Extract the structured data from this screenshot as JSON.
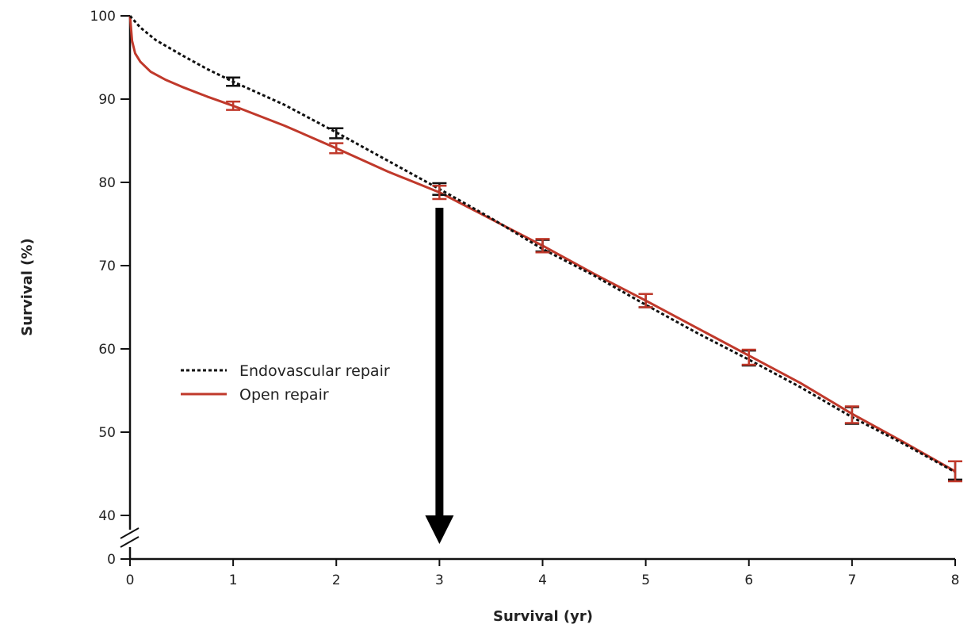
{
  "chart_data": {
    "type": "line",
    "xlabel": "Survival (yr)",
    "ylabel": "Survival (%)",
    "xlim": [
      0,
      8
    ],
    "ylim": [
      40,
      100
    ],
    "axis_break": true,
    "x_ticks": [
      "0",
      "1",
      "2",
      "3",
      "4",
      "5",
      "6",
      "7",
      "8"
    ],
    "y_ticks": [
      "0",
      "40",
      "50",
      "60",
      "70",
      "80",
      "90",
      "100"
    ],
    "grid": false,
    "legend_position": "center-left",
    "annotation": "downward arrow at x = 3",
    "series": [
      {
        "name": "Endovascular repair",
        "style": "dotted",
        "color": "#111111",
        "x": [
          0,
          0.1,
          0.25,
          0.5,
          0.75,
          1,
          1.5,
          2,
          2.5,
          3,
          3.5,
          4,
          4.5,
          5,
          5.5,
          6,
          6.5,
          7,
          7.5,
          8
        ],
        "y": [
          100,
          98.6,
          97.1,
          95.3,
          93.6,
          92.1,
          89.3,
          86.0,
          82.6,
          79.2,
          75.7,
          72.0,
          68.8,
          65.3,
          61.9,
          58.7,
          55.4,
          51.8,
          48.6,
          45.2
        ],
        "error_bars": {
          "x": [
            1,
            2,
            3,
            4,
            5,
            6,
            7,
            8
          ],
          "y": [
            92.1,
            85.9,
            79.2,
            72.4,
            65.8,
            58.9,
            52.0,
            45.4
          ],
          "err": [
            0.5,
            0.6,
            0.7,
            0.7,
            0.8,
            0.9,
            1.0,
            1.1
          ]
        }
      },
      {
        "name": "Open repair",
        "style": "solid",
        "color": "#c0392b",
        "x": [
          0,
          0.02,
          0.05,
          0.1,
          0.2,
          0.35,
          0.5,
          0.75,
          1,
          1.5,
          2,
          2.5,
          3,
          3.5,
          4,
          4.5,
          5,
          5.5,
          6,
          6.5,
          7,
          7.5,
          8
        ],
        "y": [
          100,
          97.0,
          95.5,
          94.5,
          93.3,
          92.3,
          91.5,
          90.3,
          89.2,
          86.8,
          84.1,
          81.3,
          78.8,
          75.6,
          72.4,
          69.0,
          65.8,
          62.5,
          59.2,
          55.9,
          52.2,
          48.8,
          45.3
        ],
        "error_bars": {
          "x": [
            1,
            2,
            3,
            4,
            5,
            6,
            7,
            8
          ],
          "y": [
            89.2,
            84.1,
            78.8,
            72.4,
            65.8,
            59.0,
            52.1,
            45.3
          ],
          "err": [
            0.5,
            0.6,
            0.8,
            0.8,
            0.8,
            0.9,
            1.0,
            1.2
          ]
        }
      }
    ]
  }
}
